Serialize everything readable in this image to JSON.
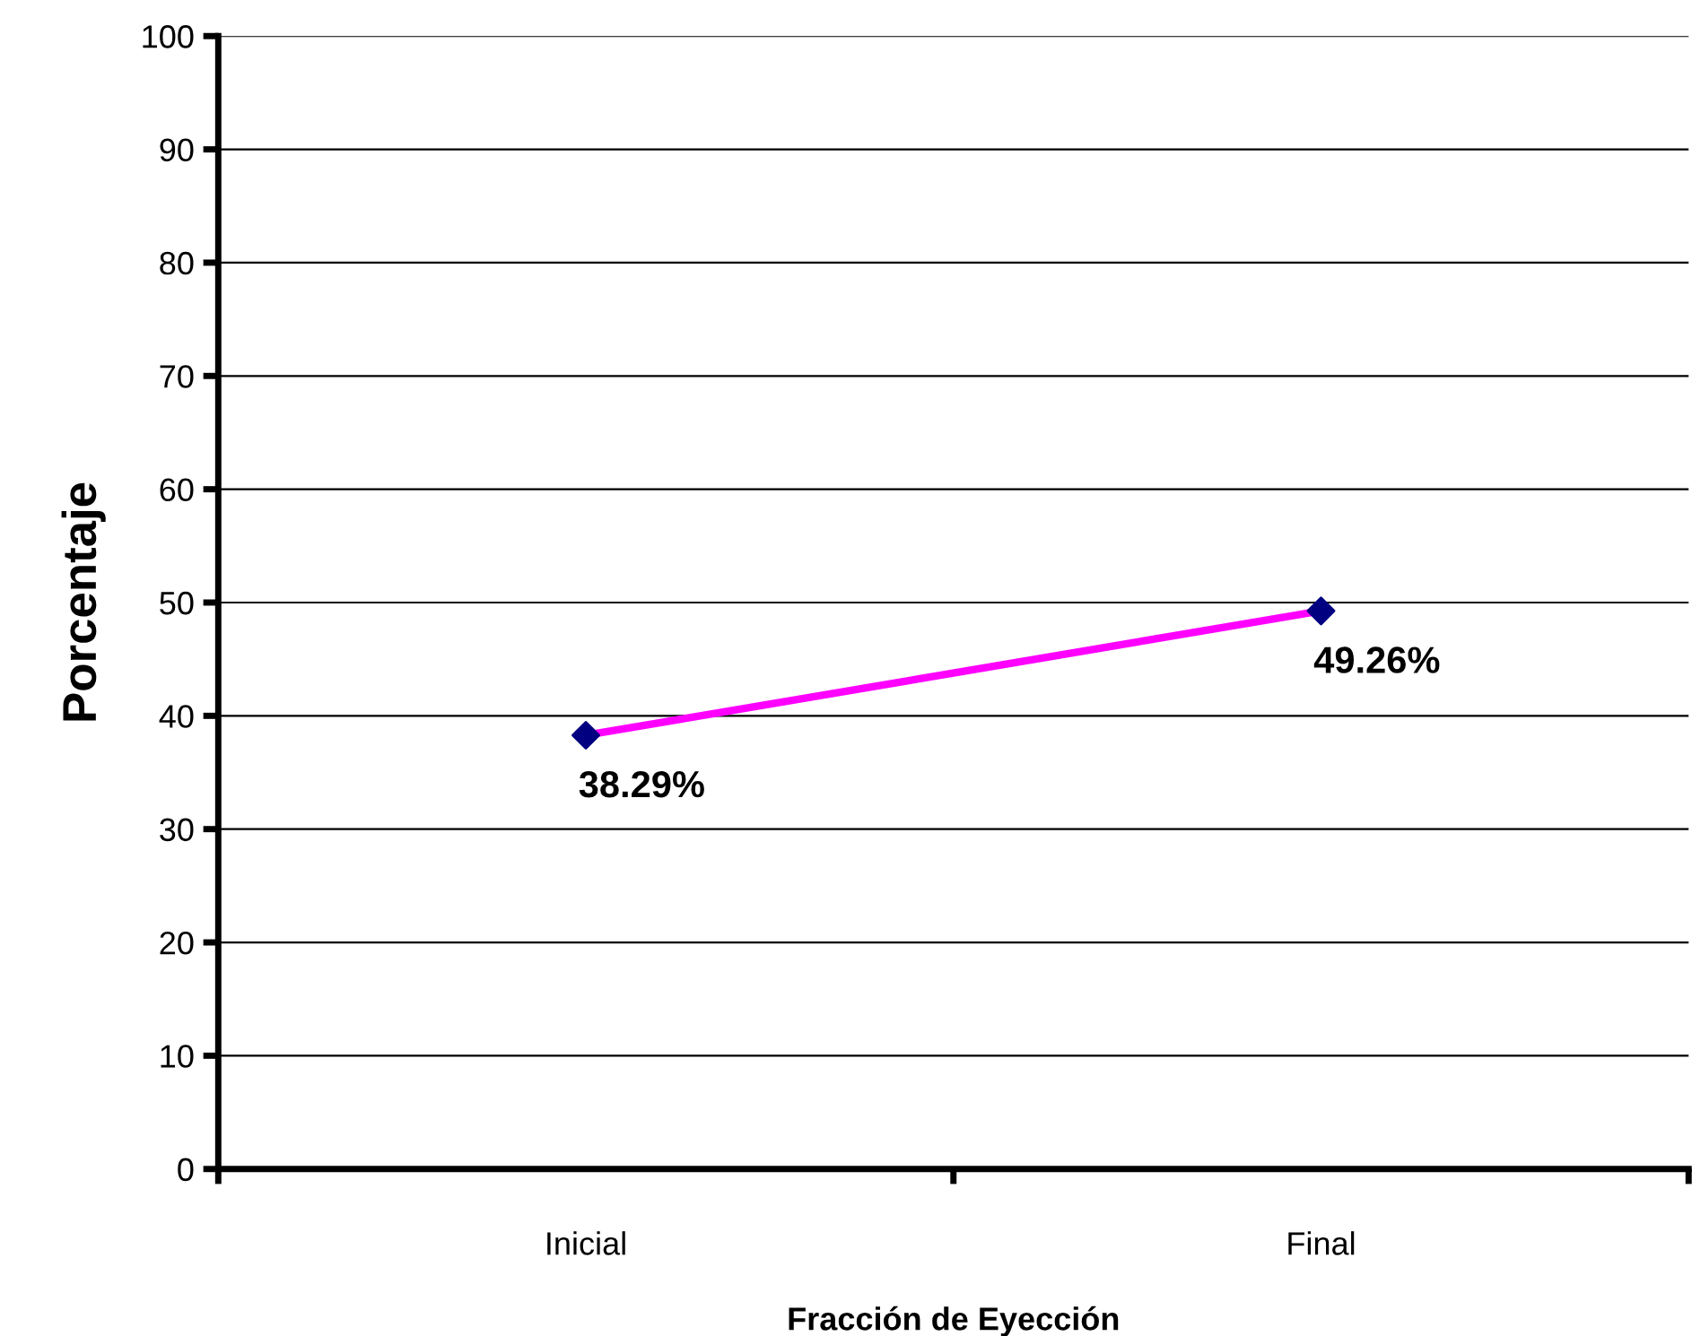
{
  "chart_data": {
    "type": "line",
    "xlabel": "Fracción de Eyección",
    "ylabel": "Porcentaje",
    "categories": [
      "Inicial",
      "Final"
    ],
    "series": [
      {
        "color": "#ff00ff",
        "colors": [
          "#000080",
          "#000080"
        ],
        "values": [
          38.29,
          49.26
        ],
        "value_labels": [
          "38.29%",
          "49.26%"
        ]
      }
    ],
    "ylim": [
      0,
      100
    ],
    "yticks": [
      0,
      10,
      20,
      30,
      40,
      50,
      60,
      70,
      80,
      90,
      100
    ],
    "grid": "y",
    "legend": false,
    "marker": "diamond",
    "line_style": "solid"
  }
}
